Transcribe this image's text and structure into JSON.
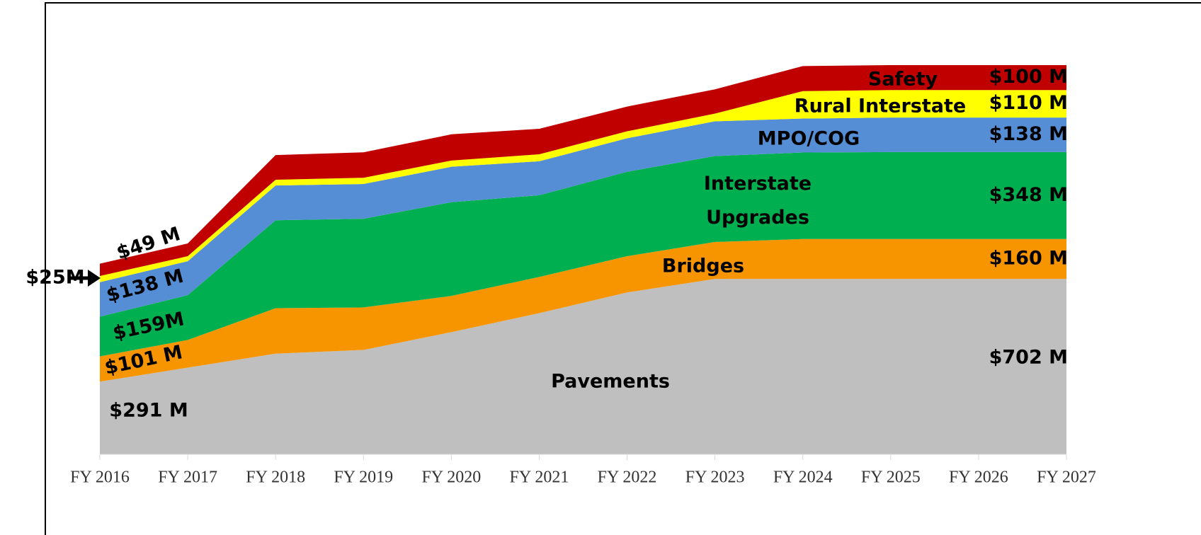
{
  "chart_data": {
    "type": "stacked_area",
    "categories": [
      "FY 2016",
      "FY 2017",
      "FY 2018",
      "FY 2019",
      "FY 2020",
      "FY 2021",
      "FY 2022",
      "FY 2023",
      "FY 2024",
      "FY 2025",
      "FY 2026",
      "FY 2027"
    ],
    "series": [
      {
        "name": "Pavements",
        "color": "#bfbfbf",
        "values": [
          291,
          347,
          403,
          418,
          489,
          565,
          648,
          702,
          702,
          702,
          702,
          702
        ],
        "value_labels": [
          "$291 M",
          null,
          null,
          null,
          null,
          null,
          null,
          null,
          null,
          null,
          null,
          "$702 M"
        ]
      },
      {
        "name": "Bridges",
        "color": "#f79500",
        "values": [
          101,
          111,
          182,
          170,
          145,
          145,
          145,
          148,
          160,
          160,
          160,
          160
        ],
        "value_labels": [
          "$101 M",
          null,
          null,
          null,
          null,
          null,
          null,
          null,
          null,
          null,
          null,
          "$160 M"
        ]
      },
      {
        "name": "Interstate Upgrades",
        "color": "#00b050",
        "values": [
          159,
          179,
          352,
          355,
          375,
          327,
          338,
          344,
          346,
          348,
          348,
          348
        ],
        "value_labels": [
          "$159M",
          null,
          null,
          null,
          null,
          null,
          null,
          null,
          null,
          null,
          null,
          "$348 M"
        ]
      },
      {
        "name": "MPO/COG",
        "color": "#558ed5",
        "values": [
          138,
          136,
          139,
          139,
          142,
          136,
          134,
          139,
          136,
          138,
          138,
          138
        ],
        "value_labels": [
          "$138 M",
          null,
          null,
          null,
          null,
          null,
          null,
          null,
          null,
          null,
          null,
          "$138 M"
        ]
      },
      {
        "name": "Rural Interstate",
        "color": "#ffff00",
        "values": [
          25,
          20,
          23,
          25,
          25,
          28,
          28,
          31,
          110,
          110,
          110,
          110
        ],
        "value_labels": [
          "$25M",
          null,
          null,
          null,
          null,
          null,
          null,
          null,
          null,
          null,
          null,
          "$110 M"
        ]
      },
      {
        "name": "Safety",
        "color": "#c00000",
        "values": [
          49,
          51,
          99,
          102,
          105,
          102,
          99,
          97,
          100,
          100,
          100,
          100
        ],
        "value_labels": [
          "$49 M",
          null,
          null,
          null,
          null,
          null,
          null,
          null,
          null,
          null,
          null,
          "$100 M"
        ]
      }
    ]
  }
}
